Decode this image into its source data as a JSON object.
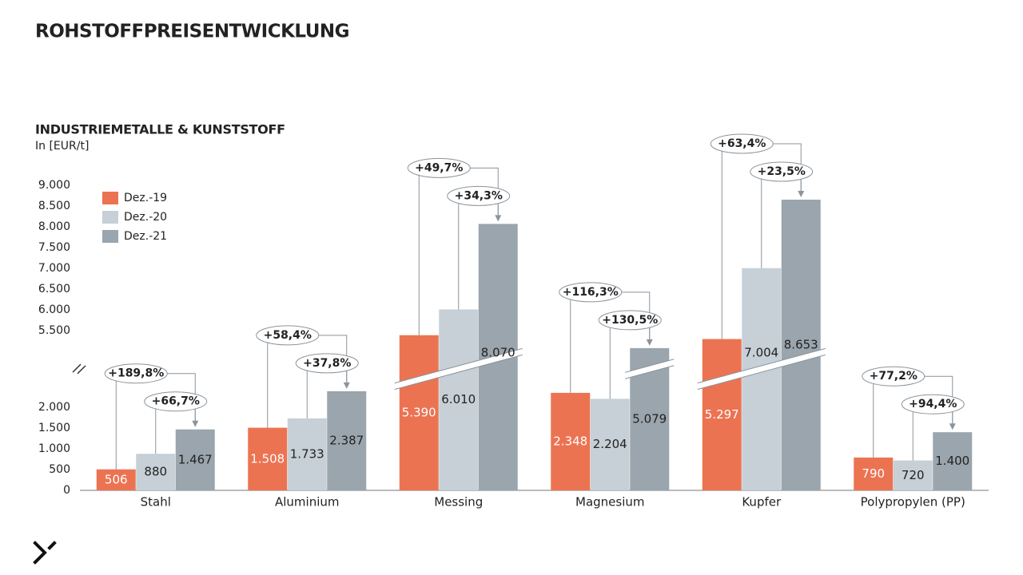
{
  "chart_data": {
    "type": "bar",
    "title": "ROHSTOFFPREISENTWICKLUNG",
    "subtitle": "INDUSTRIEMETALLE & KUNSTSTOFF",
    "y_label": "In [EUR/t]",
    "categories": [
      "Stahl",
      "Aluminium",
      "Messing",
      "Magnesium",
      "Kupfer",
      "Polypropylen (PP)"
    ],
    "series": [
      {
        "name": "Dez.-19",
        "color": "#ec7352",
        "label_color": "#ffffff",
        "values": [
          506,
          1508,
          5390,
          2348,
          5297,
          790
        ],
        "value_labels": [
          "506",
          "1.508",
          "5.390",
          "2.348",
          "5.297",
          "790"
        ]
      },
      {
        "name": "Dez.-20",
        "color": "#c6d0d6",
        "label_color": "#222222",
        "values": [
          880,
          1733,
          6010,
          2204,
          7004,
          720
        ],
        "value_labels": [
          "880",
          "1.733",
          "6.010",
          "2.204",
          "7.004",
          "720"
        ]
      },
      {
        "name": "Dez.-21",
        "color": "#9aa5ad",
        "label_color": "#222222",
        "values": [
          1467,
          2387,
          8070,
          5079,
          8653,
          1400
        ],
        "value_labels": [
          "1.467",
          "2.387",
          "8.070",
          "5.079",
          "8.653",
          "1.400"
        ]
      }
    ],
    "change_labels": [
      [
        "+189,8%",
        "+66,7%"
      ],
      [
        "+58,4%",
        "+37,8%"
      ],
      [
        "+49,7%",
        "+34,3%"
      ],
      [
        "+116,3%",
        "+130,5%"
      ],
      [
        "+63,4%",
        "+23,5%"
      ],
      [
        "+77,2%",
        "+94,4%"
      ]
    ],
    "ylim": [
      0,
      9000
    ],
    "yticks": [
      0,
      500,
      {
        "value": 1000,
        "label": "1.000"
      },
      {
        "value": 1500,
        "label": "1.500"
      },
      {
        "value": 2000,
        "label": "2.000"
      },
      {
        "value": 5500,
        "label": "5.500"
      },
      {
        "value": 6000,
        "label": "6.000"
      },
      {
        "value": 6500,
        "label": "6.500"
      },
      {
        "value": 7000,
        "label": "7.000"
      },
      {
        "value": 7500,
        "label": "7.500"
      },
      {
        "value": 8000,
        "label": "8.000"
      },
      {
        "value": 8500,
        "label": "8.500"
      },
      {
        "value": 9000,
        "label": "9.000"
      }
    ],
    "axis_break": true,
    "grid": false,
    "legend": "top-left"
  }
}
